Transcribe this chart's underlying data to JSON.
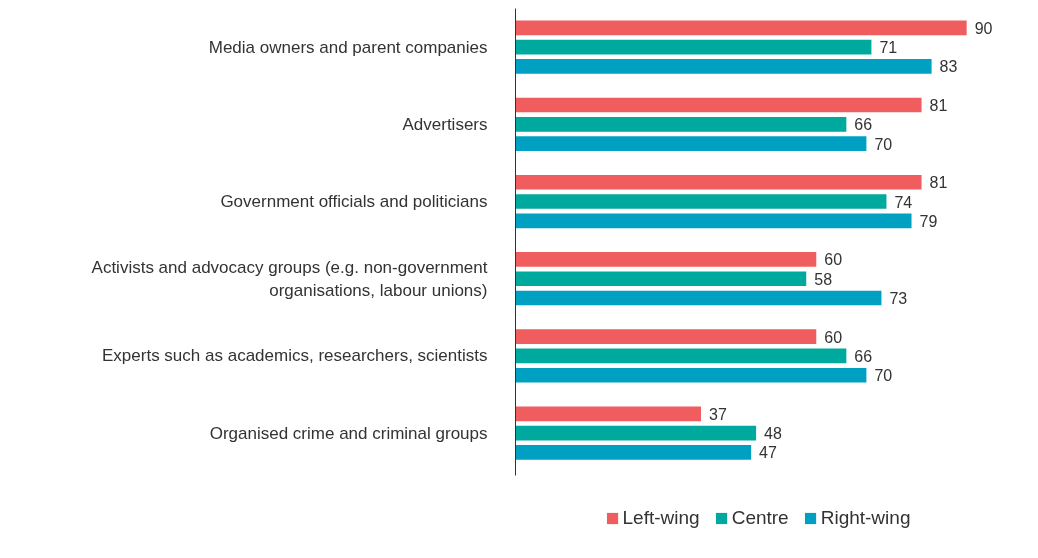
{
  "chart_data": {
    "type": "bar",
    "orientation": "horizontal",
    "data_labels": true,
    "legend": "bottom",
    "grid": false,
    "categories": [
      "Media owners and parent companies",
      "Advertisers",
      "Government officials and politicians",
      "Activists and advocacy groups (e.g. non-government organisations, labour unions)",
      "Experts such as academics, researchers, scientists",
      "Organised crime and criminal groups"
    ],
    "series": [
      {
        "name": "Left-wing",
        "color": "#f05d5e",
        "values": [
          90,
          81,
          81,
          60,
          60,
          37
        ]
      },
      {
        "name": "Centre",
        "color": "#00a99d",
        "values": [
          71,
          66,
          74,
          58,
          66,
          48
        ]
      },
      {
        "name": "Right-wing",
        "color": "#00a0c3",
        "values": [
          83,
          70,
          79,
          73,
          70,
          47
        ]
      }
    ]
  }
}
